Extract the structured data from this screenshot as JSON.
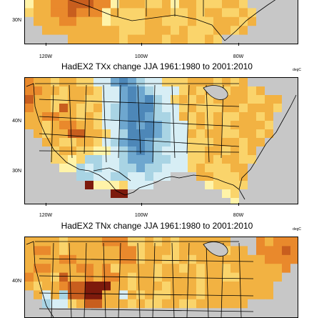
{
  "panels": [
    {
      "title": "",
      "unit": "",
      "lon_labels": [
        "120W",
        "100W",
        "80W"
      ],
      "lat_labels": [
        "30N"
      ]
    },
    {
      "title": "HadEX2 TXx change JJA 1961:1980 to 2001:2010",
      "unit": "degC",
      "lon_labels": [
        "120W",
        "100W",
        "80W"
      ],
      "lat_labels": [
        "40N",
        "30N"
      ]
    },
    {
      "title": "HadEX2 TNx change JJA 1961:1980 to 2001:2010",
      "unit": "degC",
      "lon_labels": [],
      "lat_labels": [
        "40N"
      ]
    }
  ],
  "colors": {
    "missing": "#c7c7c7",
    "neg_light": "#d7eef5",
    "neg_mid": "#a9d4e4",
    "neg_strong": "#6ea7cf",
    "neg_deep": "#4d87b8",
    "pos_pale": "#fff3a8",
    "pos_light": "#fad46b",
    "pos_mid": "#f2b242",
    "pos_orange": "#e9892c",
    "pos_deep": "#c85e1e",
    "pos_max": "#7d1a0c"
  }
}
